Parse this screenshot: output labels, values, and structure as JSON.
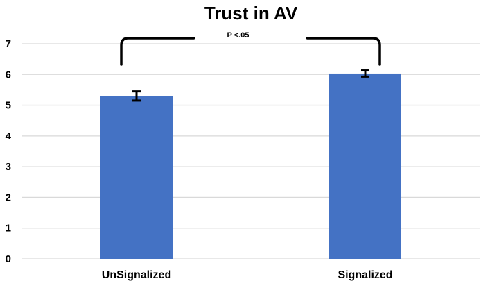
{
  "chart_data": {
    "type": "bar",
    "title": "Trust in AV",
    "categories": [
      "UnSignalized",
      "Signalized"
    ],
    "values": [
      5.3,
      6.03
    ],
    "error": [
      0.15,
      0.1
    ],
    "ylim": [
      0,
      7
    ],
    "yticks": [
      0,
      1,
      2,
      3,
      4,
      5,
      6,
      7
    ],
    "grid": true,
    "bar_color": "#4472C4",
    "grid_color": "#d9d9d9",
    "annotation": "P <.05"
  }
}
